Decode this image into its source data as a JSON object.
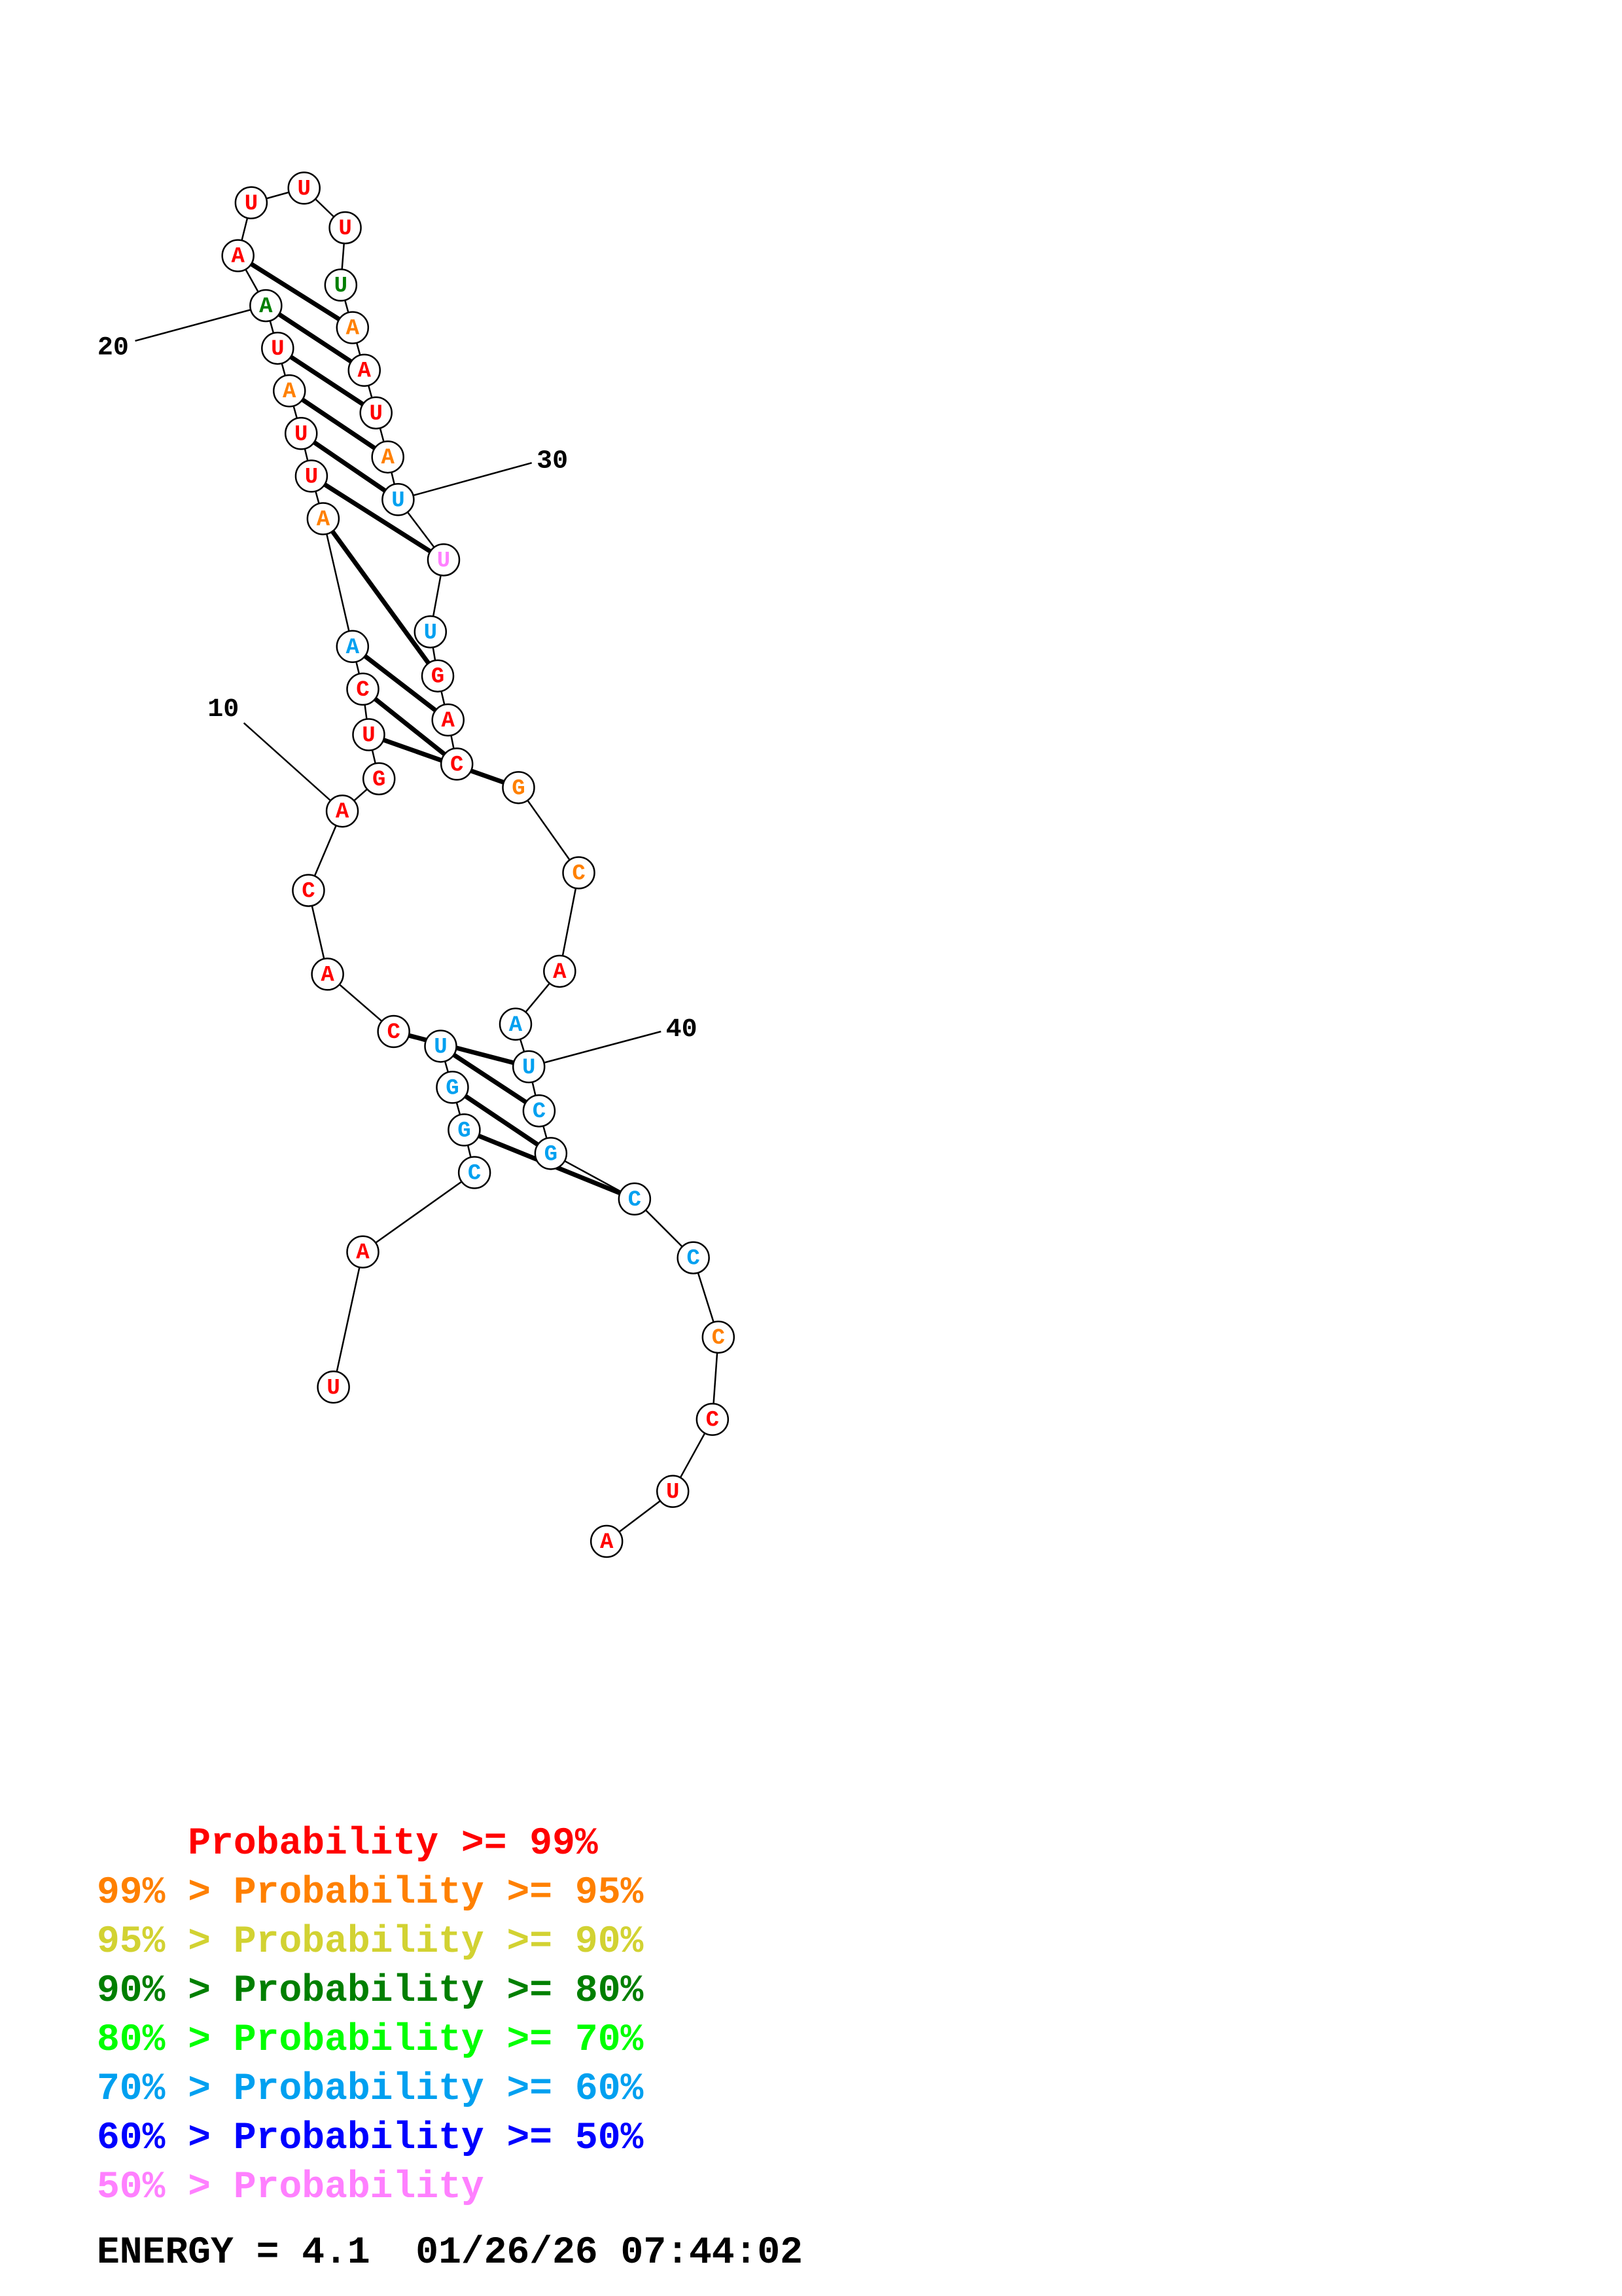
{
  "colors": {
    "p99": "#ff0000",
    "p95": "#ff8000",
    "p90": "#d2d232",
    "p80": "#007f00",
    "p70": "#00ff00",
    "p60": "#00a0f0",
    "p50": "#0000ff",
    "plow": "#ff80ff"
  },
  "sequence": [
    "U",
    "A",
    "C",
    "G",
    "G",
    "U",
    "C",
    "A",
    "C",
    "A",
    "G",
    "U",
    "C",
    "A",
    "A",
    "U",
    "U",
    "A",
    "U",
    "A",
    "A",
    "U",
    "U",
    "U",
    "U",
    "A",
    "A",
    "U",
    "A",
    "U",
    "U",
    "U",
    "G",
    "A",
    "C",
    "G",
    "C",
    "A",
    "A",
    "U",
    "C",
    "G",
    "C",
    "C",
    "C",
    "C",
    "U",
    "A"
  ],
  "base_colors": [
    "p99",
    "p99",
    "p60",
    "p60",
    "p60",
    "p60",
    "p99",
    "p99",
    "p99",
    "p99",
    "p99",
    "p99",
    "p99",
    "p60",
    "p95",
    "p99",
    "p99",
    "p95",
    "p99",
    "p80",
    "p99",
    "p99",
    "p99",
    "p99",
    "p80",
    "p95",
    "p99",
    "p99",
    "p95",
    "p60",
    "plow",
    "p60",
    "p99",
    "p99",
    "p99",
    "p95",
    "p95",
    "p99",
    "p60",
    "p60",
    "p60",
    "p60",
    "p60",
    "p60",
    "p95",
    "p99",
    "p99",
    "p99"
  ],
  "pairs": [
    [
      3,
      42
    ],
    [
      4,
      41
    ],
    [
      5,
      40
    ],
    [
      6,
      39
    ],
    [
      11,
      35
    ],
    [
      12,
      34
    ],
    [
      13,
      33
    ],
    [
      14,
      32
    ],
    [
      15,
      30
    ],
    [
      16,
      29
    ],
    [
      17,
      28
    ],
    [
      18,
      27
    ],
    [
      19,
      26
    ],
    [
      20,
      25
    ]
  ],
  "position_labels": [
    "10",
    "20",
    "30",
    "40"
  ],
  "legend": [
    {
      "prefix": "    ",
      "text": "Probability >= 99%",
      "color": "p99"
    },
    {
      "prefix": "99% > ",
      "text": "Probability >= 95%",
      "color": "p95"
    },
    {
      "prefix": "95% > ",
      "text": "Probability >= 90%",
      "color": "p90"
    },
    {
      "prefix": "90% > ",
      "text": "Probability >= 80%",
      "color": "p80"
    },
    {
      "prefix": "80% > ",
      "text": "Probability >= 70%",
      "color": "p70"
    },
    {
      "prefix": "70% > ",
      "text": "Probability >= 60%",
      "color": "p60"
    },
    {
      "prefix": "60% > ",
      "text": "Probability >= 50%",
      "color": "p50"
    },
    {
      "prefix": "50% > ",
      "text": "Probability",
      "color": "plow"
    }
  ],
  "energy_text": "ENERGY = 4.1  01/26/26 07:44:02"
}
